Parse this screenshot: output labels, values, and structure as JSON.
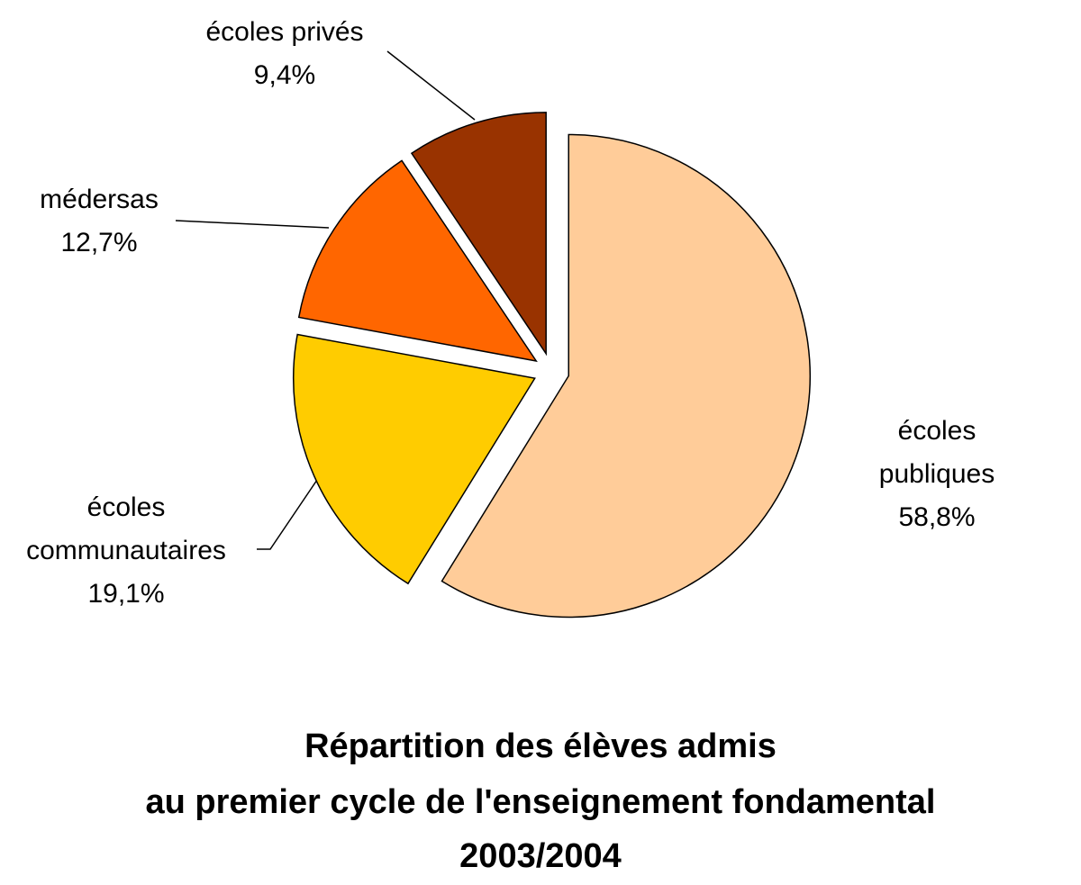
{
  "chart_data": {
    "type": "pie",
    "title": [
      "Répartition des élèves admis",
      "au  premier cycle de l'enseignement fondamental",
      "2003/2004"
    ],
    "categories": [
      "écoles publiques",
      "écoles communautaires",
      "médersas",
      "écoles privés"
    ],
    "values": [
      58.8,
      19.1,
      12.7,
      9.4
    ],
    "value_labels": [
      "58,8%",
      "19,1%",
      "12,7%",
      "9,4%"
    ],
    "colors": [
      "#ffcc99",
      "#ffcc00",
      "#ff6600",
      "#993300"
    ]
  }
}
